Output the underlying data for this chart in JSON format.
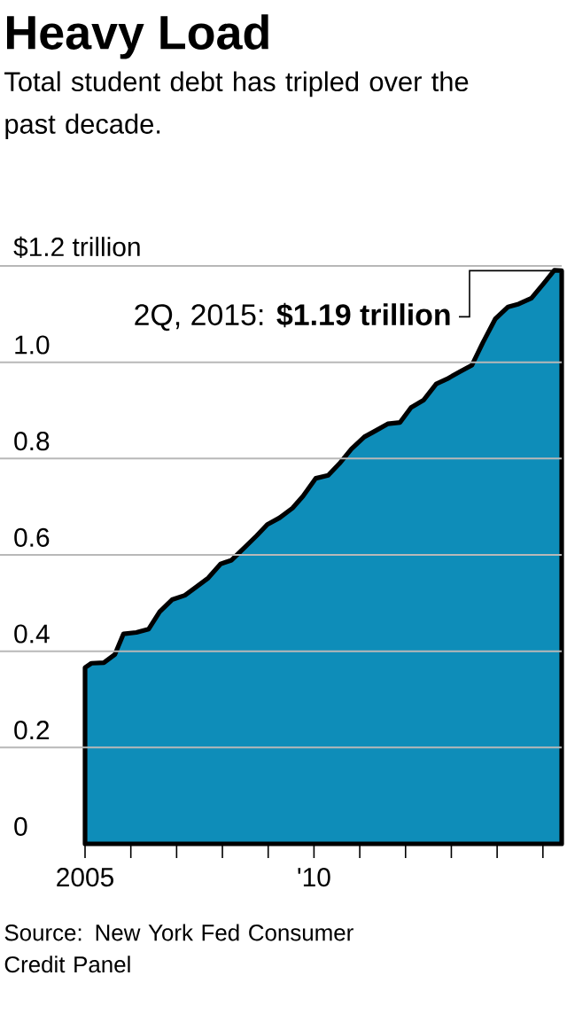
{
  "chart_data": {
    "type": "area",
    "title": "Heavy Load",
    "subtitle": "Total student debt has tripled over the past decade.",
    "x": [
      2005,
      2005.14,
      2005.41,
      2005.65,
      2005.84,
      2006.12,
      2006.39,
      2006.63,
      2006.9,
      2007.18,
      2007.41,
      2007.69,
      2007.96,
      2008.2,
      2008.47,
      2008.75,
      2008.98,
      2009.25,
      2009.53,
      2009.76,
      2010.04,
      2010.31,
      2010.55,
      2010.82,
      2011.1,
      2011.33,
      2011.61,
      2011.88,
      2012.12,
      2012.39,
      2012.67,
      2012.9,
      2013.18,
      2013.45,
      2013.69,
      2013.96,
      2014.24,
      2014.47,
      2014.75,
      2015.02,
      2015.25,
      2015.41
    ],
    "series": [
      {
        "color": "#0e8db9",
        "values": [
          0.366,
          0.375,
          0.376,
          0.393,
          0.436,
          0.439,
          0.446,
          0.482,
          0.507,
          0.516,
          0.532,
          0.552,
          0.581,
          0.589,
          0.614,
          0.64,
          0.663,
          0.677,
          0.697,
          0.722,
          0.759,
          0.765,
          0.789,
          0.82,
          0.845,
          0.857,
          0.872,
          0.875,
          0.906,
          0.921,
          0.955,
          0.965,
          0.98,
          0.994,
          1.041,
          1.09,
          1.115,
          1.121,
          1.133,
          1.164,
          1.191,
          1.19
        ]
      }
    ],
    "xlim": [
      2005,
      2015.41
    ],
    "ylim": [
      0,
      1.2
    ],
    "xticks": [
      2005,
      {
        "value": 2006,
        "label": null
      },
      {
        "value": 2007,
        "label": null
      },
      {
        "value": 2008,
        "label": null
      },
      {
        "value": 2009,
        "label": null
      },
      {
        "value": 2010,
        "label": "'10"
      },
      {
        "value": 2011,
        "label": null
      },
      {
        "value": 2012,
        "label": null
      },
      {
        "value": 2013,
        "label": null
      },
      {
        "value": 2014,
        "label": null
      },
      {
        "value": 2015,
        "label": null
      }
    ],
    "yticks": [
      0,
      0.2,
      0.4,
      0.6,
      0.8,
      {
        "value": 1,
        "label": "1.0"
      },
      {
        "value": 1.2,
        "label": "$1.2 trillion"
      }
    ],
    "grid": "y",
    "annotations": [
      {
        "text": "2Q, 2015: **$1.19 trillion**",
        "x": 2015.41,
        "y": 1.19
      },
      "Source: New York Fed Consumer Credit Panel"
    ]
  }
}
